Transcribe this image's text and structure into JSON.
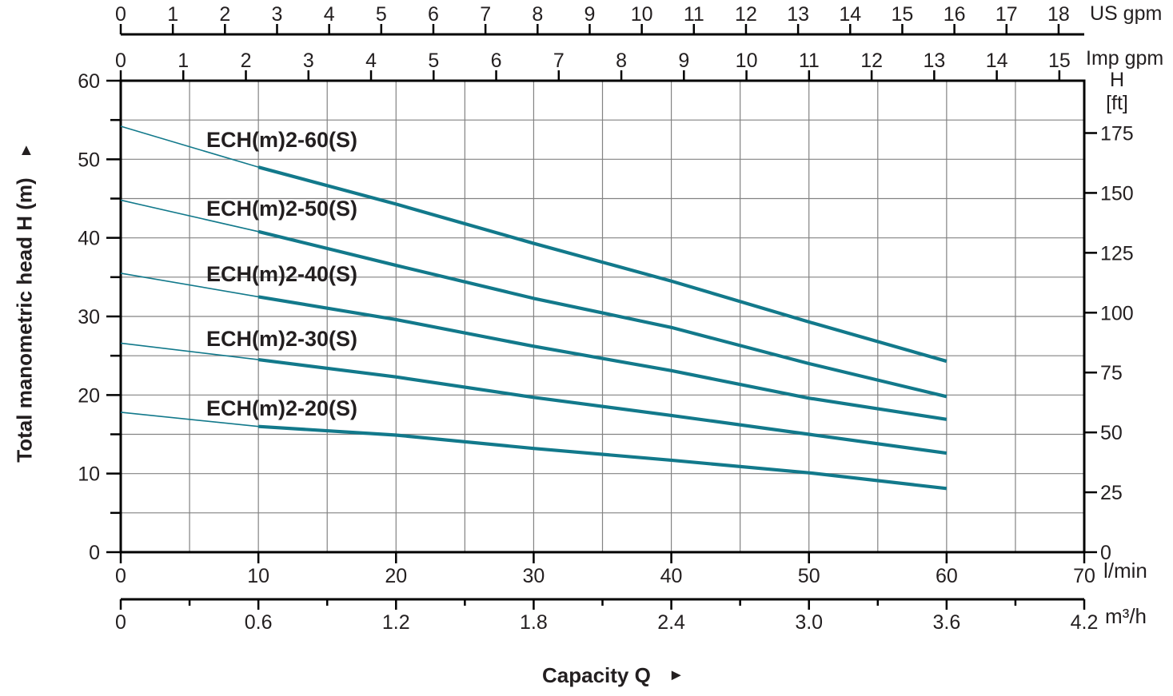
{
  "axes": {
    "us_gpm": {
      "unit": "US gpm",
      "ticks": [
        0,
        1,
        2,
        3,
        4,
        5,
        6,
        7,
        8,
        9,
        10,
        11,
        12,
        13,
        14,
        15,
        16,
        17,
        18
      ],
      "lmin_per_unit": 3.7854
    },
    "imp_gpm": {
      "unit": "Imp gpm",
      "ticks": [
        0,
        1,
        2,
        3,
        4,
        5,
        6,
        7,
        8,
        9,
        10,
        11,
        12,
        13,
        14,
        15
      ],
      "lmin_per_unit": 4.5461
    },
    "head_m": {
      "label": "Total manometric head H (m)",
      "arrow": "▲",
      "ticks": [
        0,
        10,
        20,
        30,
        40,
        50,
        60
      ],
      "minor_step": 5,
      "max": 60
    },
    "head_ft": {
      "label_line1": "H",
      "label_line2": "[ft]",
      "ticks": [
        0,
        25,
        50,
        75,
        100,
        125,
        150,
        175
      ],
      "m_per_unit": 0.3048
    },
    "lmin": {
      "unit": "l/min",
      "ticks": [
        0,
        10,
        20,
        30,
        40,
        50,
        60,
        70
      ],
      "max": 70
    },
    "m3h": {
      "unit": "m³/h",
      "ticks": [
        "0",
        "0.6",
        "1.2",
        "1.8",
        "2.4",
        "3.0",
        "3.6",
        "4.2"
      ],
      "minor_step": 0.3,
      "max": 4.2
    },
    "capacity": {
      "label": "Capacity Q",
      "arrow": "►"
    }
  },
  "chart_data": {
    "type": "line",
    "title": "",
    "x_unit": "l/min",
    "y_unit": "m",
    "xlim": [
      0,
      70
    ],
    "ylim": [
      0,
      60
    ],
    "grid": {
      "on": true,
      "x_step": 5,
      "y_step": 5
    },
    "x": [
      0,
      10,
      20,
      30,
      40,
      50,
      60
    ],
    "series": [
      {
        "name": "ECH(m)2-60(S)",
        "values": [
          54.2,
          49.0,
          44.3,
          39.3,
          34.5,
          29.3,
          24.3
        ]
      },
      {
        "name": "ECH(m)2-50(S)",
        "values": [
          44.8,
          40.8,
          36.5,
          32.3,
          28.6,
          24.0,
          19.8
        ]
      },
      {
        "name": "ECH(m)2-40(S)",
        "values": [
          35.5,
          32.5,
          29.6,
          26.2,
          23.1,
          19.6,
          16.9
        ]
      },
      {
        "name": "ECH(m)2-30(S)",
        "values": [
          26.6,
          24.5,
          22.3,
          19.7,
          17.4,
          15.0,
          12.6
        ]
      },
      {
        "name": "ECH(m)2-20(S)",
        "values": [
          17.8,
          16.0,
          14.9,
          13.2,
          11.7,
          10.1,
          8.1
        ]
      }
    ],
    "thick_from_x": 10,
    "colors": {
      "curve": "#12798b",
      "grid": "#828282",
      "axis": "#000000",
      "text": "#231f20"
    }
  }
}
